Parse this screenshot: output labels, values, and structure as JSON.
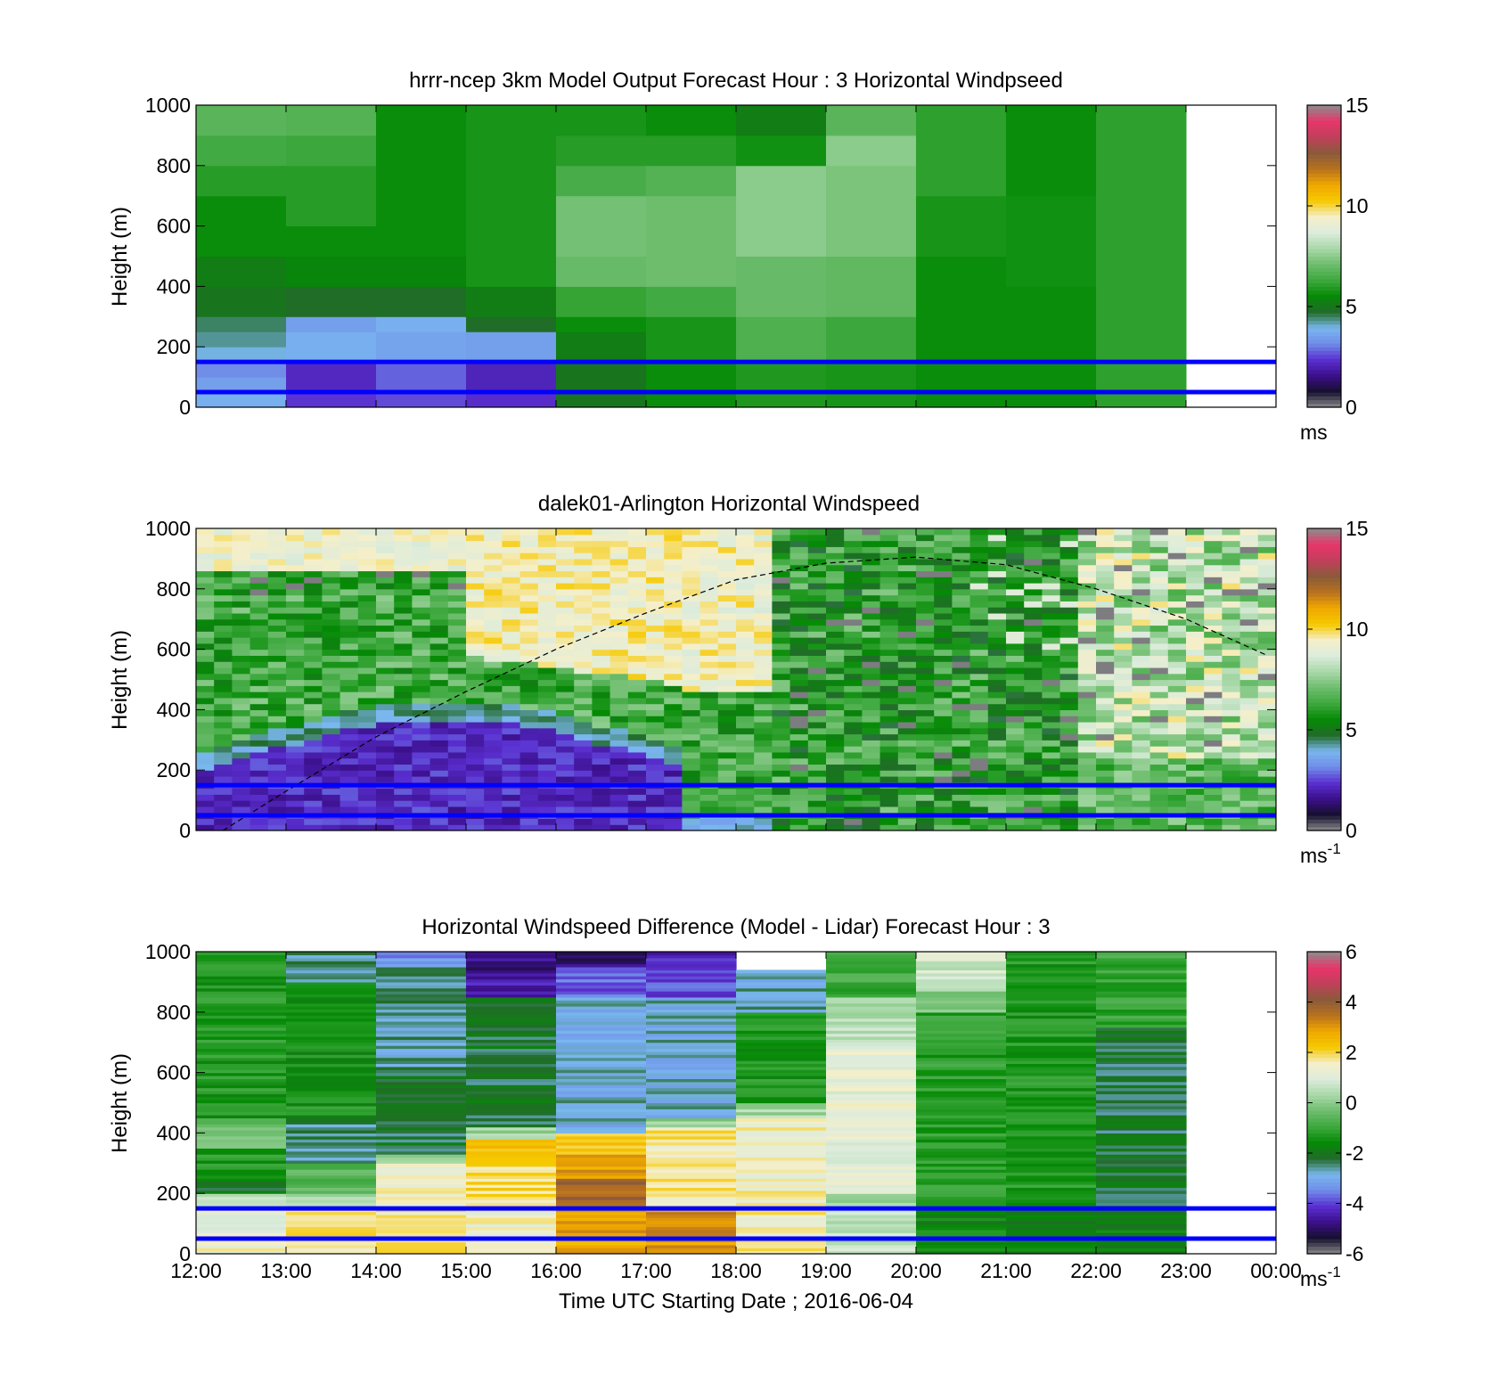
{
  "colors": {
    "speed_map": [
      "#8c8c8c",
      "#15102e",
      "#3b0f8a",
      "#5a2fd0",
      "#6f8ce8",
      "#7ab7ef",
      "#226b2a",
      "#058a05",
      "#3da83d",
      "#6dbd6d",
      "#a8d8a8",
      "#dcecdc",
      "#f5efc9",
      "#f6c900",
      "#f0a800",
      "#b8721e",
      "#8a5a3a",
      "#c0405a",
      "#e8356a",
      "#8c8c8c"
    ],
    "diff_map": [
      "#8c8c8c",
      "#15102e",
      "#3b0f8a",
      "#5a2fd0",
      "#6f8ce8",
      "#7ab7ef",
      "#226b2a",
      "#058a05",
      "#3da83d",
      "#6dbd6d",
      "#a8d8a8",
      "#dcecdc",
      "#f5efc9",
      "#f6c900",
      "#f0a800",
      "#b8721e",
      "#8a5a3a",
      "#c0405a",
      "#e8356a",
      "#8c8c8c"
    ],
    "guide_line": "#0000ff",
    "boundary_curve": "#000000"
  },
  "x_axis": {
    "ticks": [
      "12:00",
      "13:00",
      "14:00",
      "15:00",
      "16:00",
      "17:00",
      "18:00",
      "19:00",
      "20:00",
      "21:00",
      "22:00",
      "23:00",
      "00:00"
    ],
    "label": "Time UTC  Starting Date ; 2016-06-04"
  },
  "chart_data": [
    {
      "type": "heatmap",
      "id": "model",
      "title": "hrrr-ncep 3km Model Output   Forecast Hour : 3 Horizontal Windpseed",
      "ylabel": "Height (m)",
      "ylim": [
        0,
        1000
      ],
      "yticks": [
        "0",
        "200",
        "400",
        "600",
        "800",
        "1000"
      ],
      "x_hours": [
        12,
        24
      ],
      "colorbar": {
        "range": [
          0,
          15
        ],
        "ticks": [
          "0",
          "5",
          "10",
          "15"
        ],
        "unit": "ms",
        "unit_sup": ""
      },
      "guide_lines_m": [
        50,
        150
      ],
      "cells": [
        {
          "t0": 12,
          "t1": 13,
          "levels": [
            [
              0,
              50,
              3.8
            ],
            [
              50,
              100,
              3.5
            ],
            [
              100,
              150,
              3.2
            ],
            [
              150,
              200,
              4.0
            ],
            [
              200,
              250,
              4.3
            ],
            [
              250,
              300,
              4.5
            ],
            [
              300,
              400,
              5.0
            ],
            [
              400,
              500,
              5.2
            ],
            [
              500,
              700,
              5.6
            ],
            [
              700,
              800,
              6.0
            ],
            [
              800,
              900,
              6.4
            ],
            [
              900,
              1000,
              6.8
            ]
          ]
        },
        {
          "t0": 13,
          "t1": 14,
          "levels": [
            [
              0,
              50,
              2.4
            ],
            [
              50,
              150,
              2.2
            ],
            [
              150,
              250,
              3.8
            ],
            [
              250,
              300,
              3.5
            ],
            [
              300,
              400,
              4.8
            ],
            [
              400,
              500,
              5.4
            ],
            [
              500,
              600,
              5.6
            ],
            [
              600,
              800,
              6.0
            ],
            [
              800,
              900,
              6.3
            ],
            [
              900,
              1000,
              6.7
            ]
          ]
        },
        {
          "t0": 14,
          "t1": 15,
          "levels": [
            [
              0,
              50,
              2.6
            ],
            [
              50,
              150,
              2.8
            ],
            [
              150,
              250,
              3.6
            ],
            [
              250,
              300,
              3.8
            ],
            [
              300,
              400,
              4.8
            ],
            [
              400,
              500,
              5.4
            ],
            [
              500,
              1000,
              5.6
            ]
          ]
        },
        {
          "t0": 15,
          "t1": 16,
          "levels": [
            [
              0,
              50,
              2.3
            ],
            [
              50,
              150,
              2.1
            ],
            [
              150,
              250,
              3.5
            ],
            [
              250,
              300,
              4.8
            ],
            [
              300,
              400,
              5.2
            ],
            [
              400,
              1000,
              5.8
            ]
          ]
        },
        {
          "t0": 16,
          "t1": 17,
          "levels": [
            [
              0,
              50,
              5.0
            ],
            [
              50,
              150,
              5.0
            ],
            [
              150,
              250,
              5.2
            ],
            [
              250,
              300,
              5.6
            ],
            [
              300,
              400,
              6.2
            ],
            [
              400,
              500,
              7.0
            ],
            [
              500,
              700,
              7.2
            ],
            [
              700,
              800,
              6.5
            ],
            [
              800,
              900,
              6.0
            ],
            [
              900,
              1000,
              5.8
            ]
          ]
        },
        {
          "t0": 17,
          "t1": 18,
          "levels": [
            [
              0,
              150,
              5.6
            ],
            [
              150,
              300,
              5.8
            ],
            [
              300,
              400,
              6.4
            ],
            [
              400,
              700,
              7.1
            ],
            [
              700,
              800,
              6.7
            ],
            [
              800,
              900,
              6.0
            ],
            [
              900,
              1000,
              5.6
            ]
          ]
        },
        {
          "t0": 18,
          "t1": 19,
          "levels": [
            [
              0,
              150,
              5.9
            ],
            [
              150,
              300,
              6.6
            ],
            [
              300,
              500,
              7.0
            ],
            [
              500,
              800,
              7.5
            ],
            [
              800,
              900,
              5.7
            ],
            [
              900,
              1000,
              5.2
            ]
          ]
        },
        {
          "t0": 19,
          "t1": 20,
          "levels": [
            [
              0,
              150,
              5.8
            ],
            [
              150,
              300,
              6.3
            ],
            [
              300,
              500,
              6.9
            ],
            [
              500,
              800,
              7.3
            ],
            [
              800,
              900,
              7.5
            ],
            [
              900,
              1000,
              6.8
            ]
          ]
        },
        {
          "t0": 20,
          "t1": 21,
          "levels": [
            [
              0,
              150,
              5.6
            ],
            [
              150,
              500,
              5.6
            ],
            [
              500,
              700,
              5.8
            ],
            [
              700,
              1000,
              6.1
            ]
          ]
        },
        {
          "t0": 21,
          "t1": 22,
          "levels": [
            [
              0,
              150,
              5.6
            ],
            [
              150,
              400,
              5.6
            ],
            [
              400,
              700,
              5.7
            ],
            [
              700,
              1000,
              5.6
            ]
          ]
        },
        {
          "t0": 22,
          "t1": 23,
          "levels": [
            [
              0,
              1000,
              6.1
            ]
          ]
        }
      ]
    },
    {
      "type": "heatmap",
      "id": "lidar",
      "title": "dalek01-Arlington  Horizontal Windspeed",
      "ylabel": "Height (m)",
      "ylim": [
        0,
        1000
      ],
      "yticks": [
        "0",
        "200",
        "400",
        "600",
        "800",
        "1000"
      ],
      "x_hours": [
        12,
        24
      ],
      "colorbar": {
        "range": [
          0,
          15
        ],
        "ticks": [
          "0",
          "5",
          "10",
          "15"
        ],
        "unit": "ms",
        "unit_sup": "-1"
      },
      "guide_lines_m": [
        50,
        150
      ],
      "boundary_curve": {
        "hours": [
          12.3,
          13.0,
          14.0,
          15.0,
          16.0,
          17.0,
          18.0,
          19.0,
          20.0,
          21.0,
          22.0,
          23.0,
          23.9
        ],
        "heights": [
          0,
          130,
          310,
          460,
          600,
          720,
          830,
          885,
          905,
          880,
          800,
          700,
          580
        ]
      },
      "field_t1": 23.9
    },
    {
      "type": "heatmap",
      "id": "diff",
      "title": "Horizontal Windspeed Difference (Model - Lidar) Forecast Hour : 3",
      "ylabel": "Height (m)",
      "ylim": [
        0,
        1000
      ],
      "yticks": [
        "0",
        "200",
        "400",
        "600",
        "800",
        "1000"
      ],
      "x_hours": [
        12,
        24
      ],
      "colorbar": {
        "range": [
          -6,
          6
        ],
        "ticks": [
          "-6",
          "-4",
          "-2",
          "0",
          "2",
          "4",
          "6"
        ],
        "unit": "ms",
        "unit_sup": "-1"
      },
      "guide_lines_m": [
        50,
        150
      ]
    }
  ]
}
